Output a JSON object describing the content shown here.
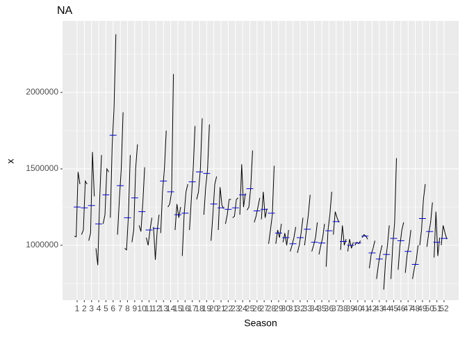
{
  "chart_data": {
    "type": "subseries",
    "title": "NA",
    "xlabel": "Season",
    "ylabel": "x",
    "categories": [
      "1",
      "2",
      "3",
      "4",
      "5",
      "6",
      "7",
      "8",
      "9",
      "10",
      "11",
      "12",
      "13",
      "14",
      "15",
      "16",
      "17",
      "18",
      "19",
      "20",
      "21",
      "22",
      "23",
      "24",
      "25",
      "26",
      "27",
      "28",
      "29",
      "30",
      "31",
      "32",
      "33",
      "34",
      "35",
      "36",
      "37",
      "38",
      "39",
      "40",
      "41",
      "42",
      "43",
      "44",
      "45",
      "46",
      "47",
      "48",
      "49",
      "50",
      "51",
      "52"
    ],
    "values": [
      [
        1060000,
        1055000,
        1480000,
        1400000
      ],
      [
        1070000,
        1100000,
        1420000,
        1400000
      ],
      [
        1030000,
        1080000,
        1610000,
        1320000
      ],
      [
        980000,
        870000,
        1300000,
        1590000
      ],
      [
        1140000,
        1200000,
        1500000,
        1480000
      ],
      [
        1180000,
        1650000,
        1900000,
        2380000
      ],
      [
        1070000,
        1300000,
        1500000,
        1870000
      ],
      [
        980000,
        970000,
        1200000,
        1590000
      ],
      [
        1020000,
        1100000,
        1500000,
        1660000
      ],
      [
        1130000,
        1090000,
        1280000,
        1510000
      ],
      [
        1050000,
        1000000,
        1100000,
        1180000
      ],
      [
        1120000,
        905000,
        1100000,
        1200000
      ],
      [
        1080000,
        1350000,
        1500000,
        1750000
      ],
      [
        1250000,
        1270000,
        1350000,
        2120000
      ],
      [
        1100000,
        1270000,
        1180000,
        1250000
      ],
      [
        930000,
        1200000,
        1350000,
        1400000
      ],
      [
        1100000,
        1300000,
        1500000,
        1780000
      ],
      [
        1300000,
        1350000,
        1500000,
        1830000
      ],
      [
        1200000,
        1380000,
        1500000,
        1790000
      ],
      [
        1030000,
        1200000,
        1400000,
        1450000
      ],
      [
        1100000,
        1380000,
        1260000,
        1240000
      ],
      [
        1140000,
        1200000,
        1300000,
        1300000
      ],
      [
        1180000,
        1190000,
        1300000,
        1310000
      ],
      [
        1200000,
        1530000,
        1250000,
        1340000
      ],
      [
        1230000,
        1250000,
        1380000,
        1620000
      ],
      [
        1150000,
        1190000,
        1250000,
        1310000
      ],
      [
        1170000,
        1350000,
        1180000,
        1240000
      ],
      [
        1010000,
        1100000,
        1200000,
        1520000
      ],
      [
        1010000,
        1100000,
        1050000,
        1140000
      ],
      [
        1020000,
        1080000,
        1000000,
        1100000
      ],
      [
        960000,
        1000000,
        1050000,
        1120000
      ],
      [
        950000,
        1000000,
        1080000,
        1180000
      ],
      [
        1000000,
        1100000,
        1200000,
        1330000
      ],
      [
        960000,
        1000000,
        1050000,
        1150000
      ],
      [
        940000,
        1000000,
        1050000,
        1140000
      ],
      [
        860000,
        1100000,
        1200000,
        1350000
      ],
      [
        1070000,
        1220000,
        1180000,
        1150000
      ],
      [
        970000,
        1130000,
        1000000,
        1040000
      ],
      [
        960000,
        1040000,
        980000,
        1020000
      ],
      [
        1000000,
        1020000,
        1010000,
        1030000
      ],
      [
        1050000,
        1070000,
        1060000,
        1040000
      ],
      [
        850000,
        940000,
        980000,
        1030000
      ],
      [
        780000,
        870000,
        950000,
        1000000
      ],
      [
        710000,
        900000,
        1000000,
        1130000
      ],
      [
        780000,
        1000000,
        1150000,
        1570000
      ],
      [
        840000,
        1000000,
        1100000,
        1150000
      ],
      [
        820000,
        940000,
        1000000,
        1100000
      ],
      [
        780000,
        850000,
        900000,
        1000000
      ],
      [
        1000000,
        1100000,
        1300000,
        1400000
      ],
      [
        990000,
        1080000,
        1150000,
        1280000
      ],
      [
        920000,
        1220000,
        930000,
        1050000
      ],
      [
        1000000,
        1130000,
        1080000,
        1040000
      ]
    ],
    "means": [
      1250000,
      1245000,
      1260000,
      1140000,
      1330000,
      1720000,
      1390000,
      1180000,
      1310000,
      1220000,
      1100000,
      1110000,
      1420000,
      1350000,
      1200000,
      1210000,
      1415000,
      1480000,
      1470000,
      1270000,
      1245000,
      1235000,
      1245000,
      1330000,
      1370000,
      1225000,
      1235000,
      1210000,
      1080000,
      1050000,
      1010000,
      1050000,
      1105000,
      1020000,
      1015000,
      1095000,
      1155000,
      1025000,
      1000000,
      1015000,
      1060000,
      950000,
      910000,
      940000,
      1045000,
      1030000,
      960000,
      875000,
      1175000,
      1090000,
      1020000,
      1045000
    ],
    "line_color": "#000000",
    "mean_color": "#0000cd",
    "ylim": [
      641000,
      2468000
    ],
    "yticks": [
      1000000,
      1500000,
      2000000
    ],
    "minor_yticks": [
      750000,
      1250000,
      1750000,
      2250000
    ],
    "grid": true
  }
}
